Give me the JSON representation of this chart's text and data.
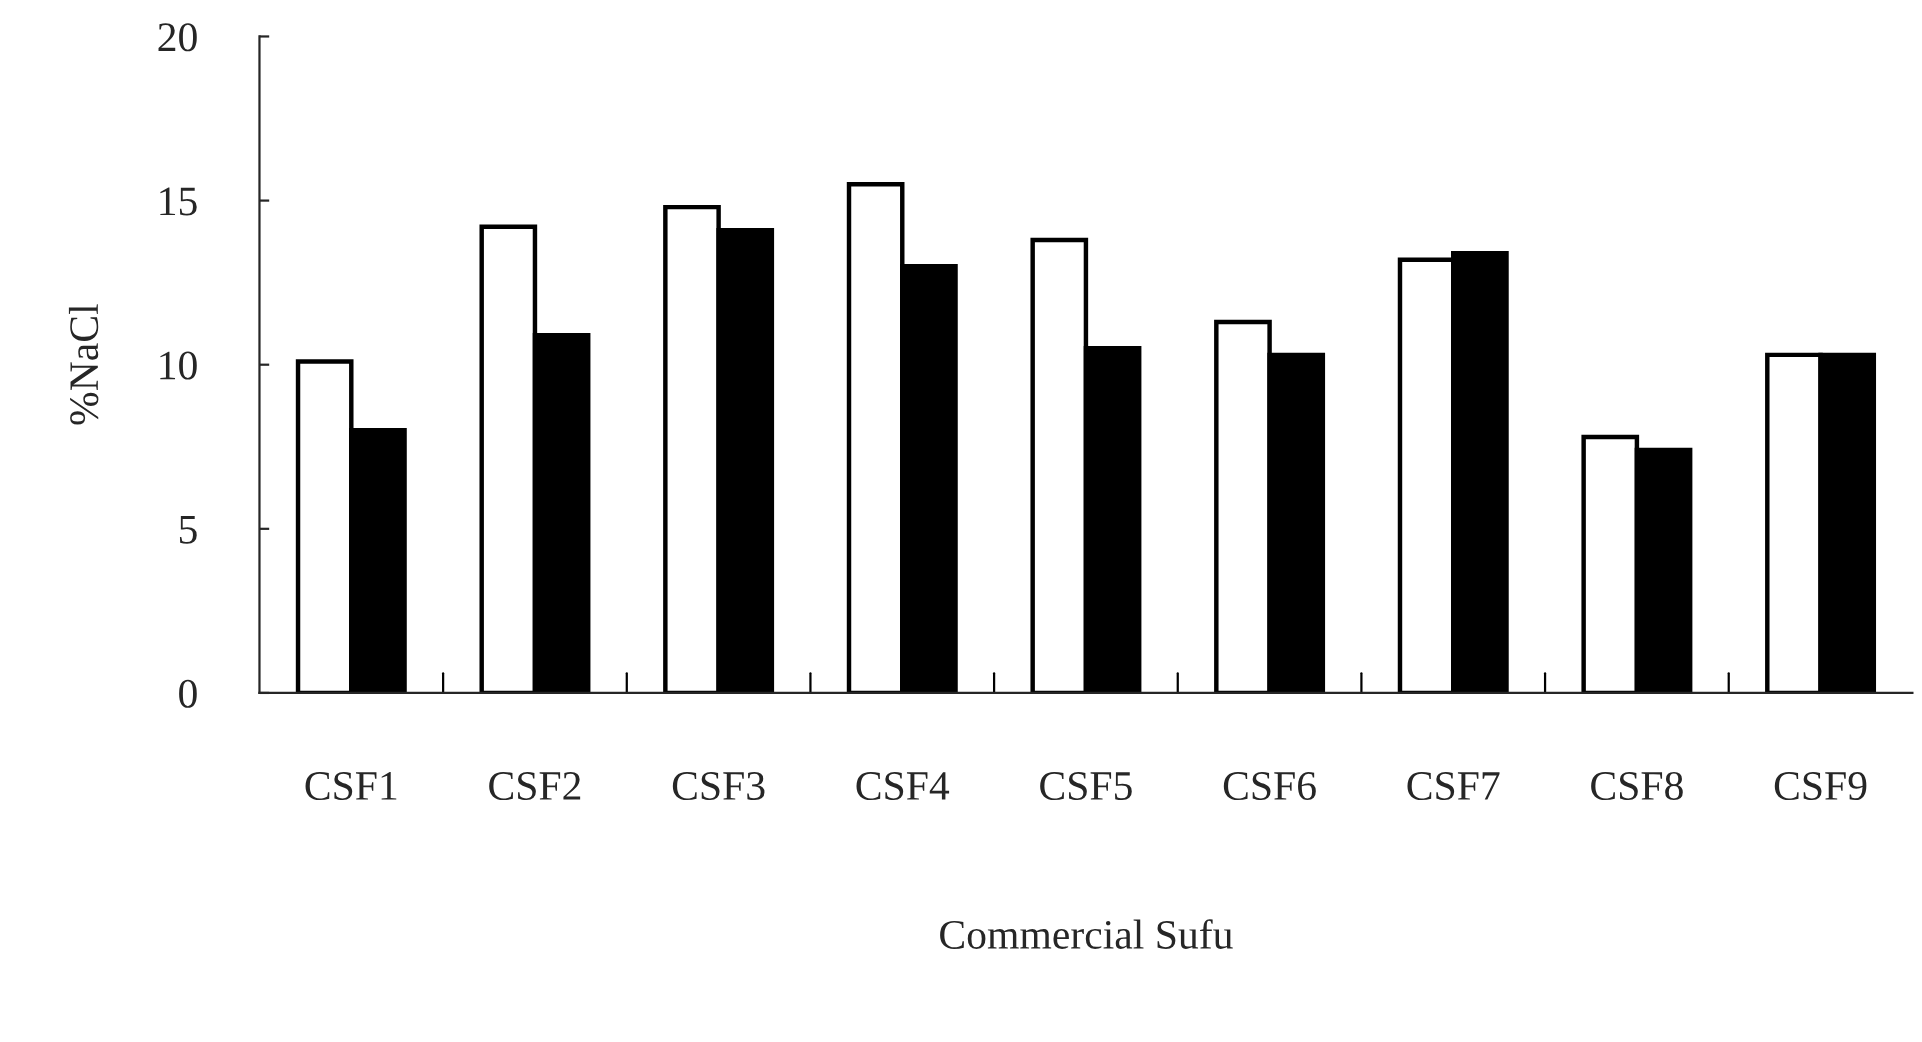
{
  "chart_data": {
    "type": "bar",
    "xlabel": "Commercial Sufu",
    "ylabel": "%NaCl",
    "categories": [
      "CSF1",
      "CSF2",
      "CSF3",
      "CSF4",
      "CSF5",
      "CSF6",
      "CSF7",
      "CSF8",
      "CSF9"
    ],
    "series": [
      {
        "color": "#ffffff",
        "values": [
          10.1,
          14.2,
          14.8,
          15.5,
          13.8,
          11.3,
          13.2,
          7.8,
          10.3
        ]
      },
      {
        "color": "#000000",
        "values": [
          8.0,
          10.9,
          14.1,
          13.0,
          10.5,
          10.3,
          13.4,
          7.4,
          10.3
        ]
      }
    ],
    "ylim": [
      0,
      20
    ],
    "yticks": [
      0,
      5,
      10,
      15,
      20
    ],
    "grid": false
  }
}
